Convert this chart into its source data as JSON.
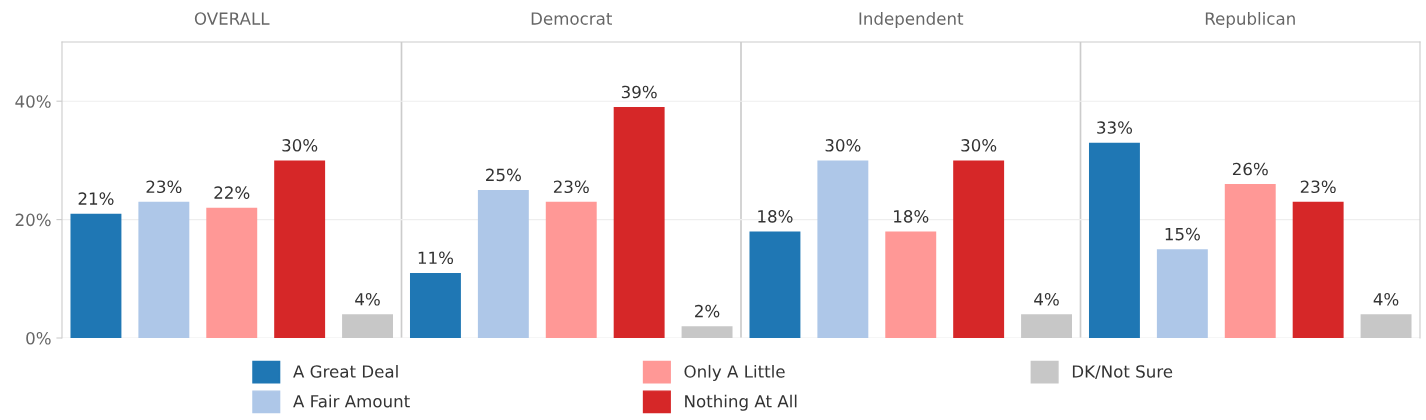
{
  "chart_data": {
    "type": "bar",
    "categories": [
      "OVERALL",
      "Democrat",
      "Independent",
      "Republican"
    ],
    "ylim": [
      0,
      50
    ],
    "yticks": [
      {
        "value": 0,
        "label": "0%"
      },
      {
        "value": 20,
        "label": "20%"
      },
      {
        "value": 40,
        "label": "40%"
      }
    ],
    "grid": "y",
    "legend": "bottom",
    "series": [
      {
        "name": "A Great Deal",
        "color": "#1f77b4",
        "values": [
          21,
          11,
          18,
          33
        ],
        "value_labels": [
          "21%",
          "11%",
          "18%",
          "33%"
        ]
      },
      {
        "name": "A Fair Amount",
        "color": "#aec7e8",
        "values": [
          23,
          25,
          30,
          15
        ],
        "value_labels": [
          "23%",
          "25%",
          "30%",
          "15%"
        ]
      },
      {
        "name": "Only A Little",
        "color": "#ff9896",
        "values": [
          22,
          23,
          18,
          26
        ],
        "value_labels": [
          "22%",
          "23%",
          "18%",
          "26%"
        ]
      },
      {
        "name": "Nothing At All",
        "color": "#d62728",
        "values": [
          30,
          39,
          30,
          23
        ],
        "value_labels": [
          "30%",
          "39%",
          "30%",
          "23%"
        ]
      },
      {
        "name": "DK/Not Sure",
        "color": "#c7c7c7",
        "values": [
          4,
          2,
          4,
          4
        ],
        "value_labels": [
          "4%",
          "2%",
          "4%",
          "4%"
        ]
      }
    ]
  }
}
